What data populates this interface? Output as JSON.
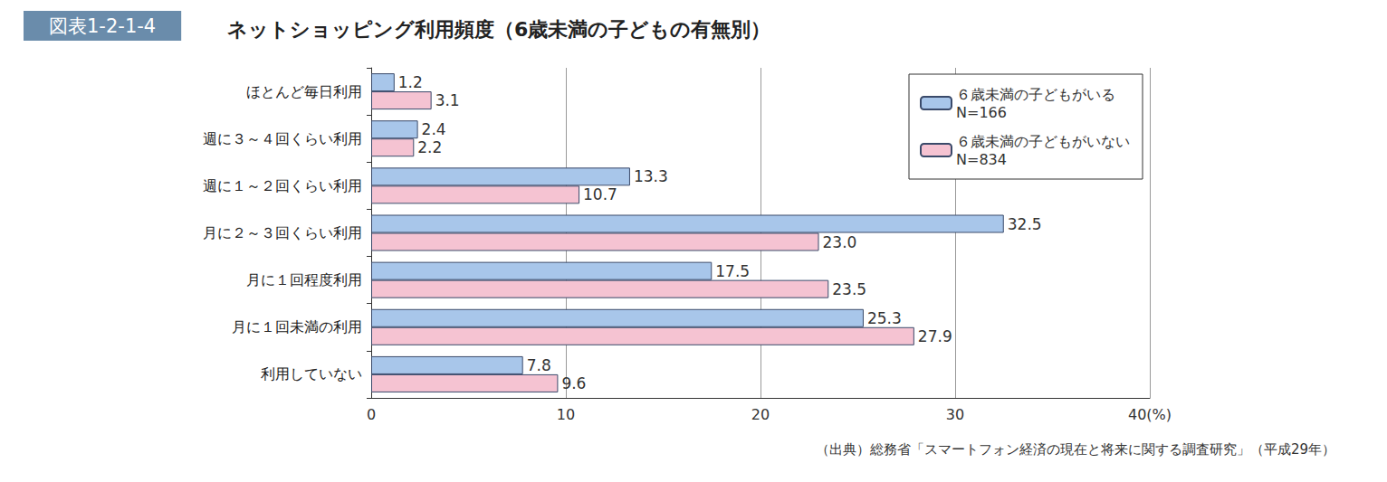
{
  "chart_data": {
    "type": "bar",
    "figure_label": "図表1-2-1-4",
    "title": "ネットショッピング利用頻度（6歳未満の子どもの有無別）",
    "source": "（出典）総務省「スマートフォン経済の現在と将来に関する調査研究」（平成29年）",
    "orientation": "horizontal",
    "categories": [
      "ほとんど毎日利用",
      "週に３～４回くらい利用",
      "週に１～２回くらい利用",
      "月に２～３回くらい利用",
      "月に１回程度利用",
      "月に１回未満の利用",
      "利用していない"
    ],
    "series": [
      {
        "name": "６歳未満の子どもがいる\nN=166",
        "color": "#a8c6ea",
        "values": [
          1.2,
          2.4,
          13.3,
          32.5,
          17.5,
          25.3,
          7.8
        ]
      },
      {
        "name": "６歳未満の子どもがいない\nN=834",
        "color": "#f5c3d2",
        "values": [
          3.1,
          2.2,
          10.7,
          23.0,
          23.5,
          27.9,
          9.6
        ],
        "value_labels": [
          "3.1",
          "2.2",
          "10.7",
          "23.0",
          "23.5",
          "27.9",
          "9.6"
        ]
      }
    ],
    "xlim": [
      0,
      40
    ],
    "xticks": [
      0,
      10,
      20,
      30,
      {
        "value": 40,
        "label": "40(%)"
      }
    ],
    "grid": true,
    "legend": "top-right",
    "data_labels": true
  }
}
